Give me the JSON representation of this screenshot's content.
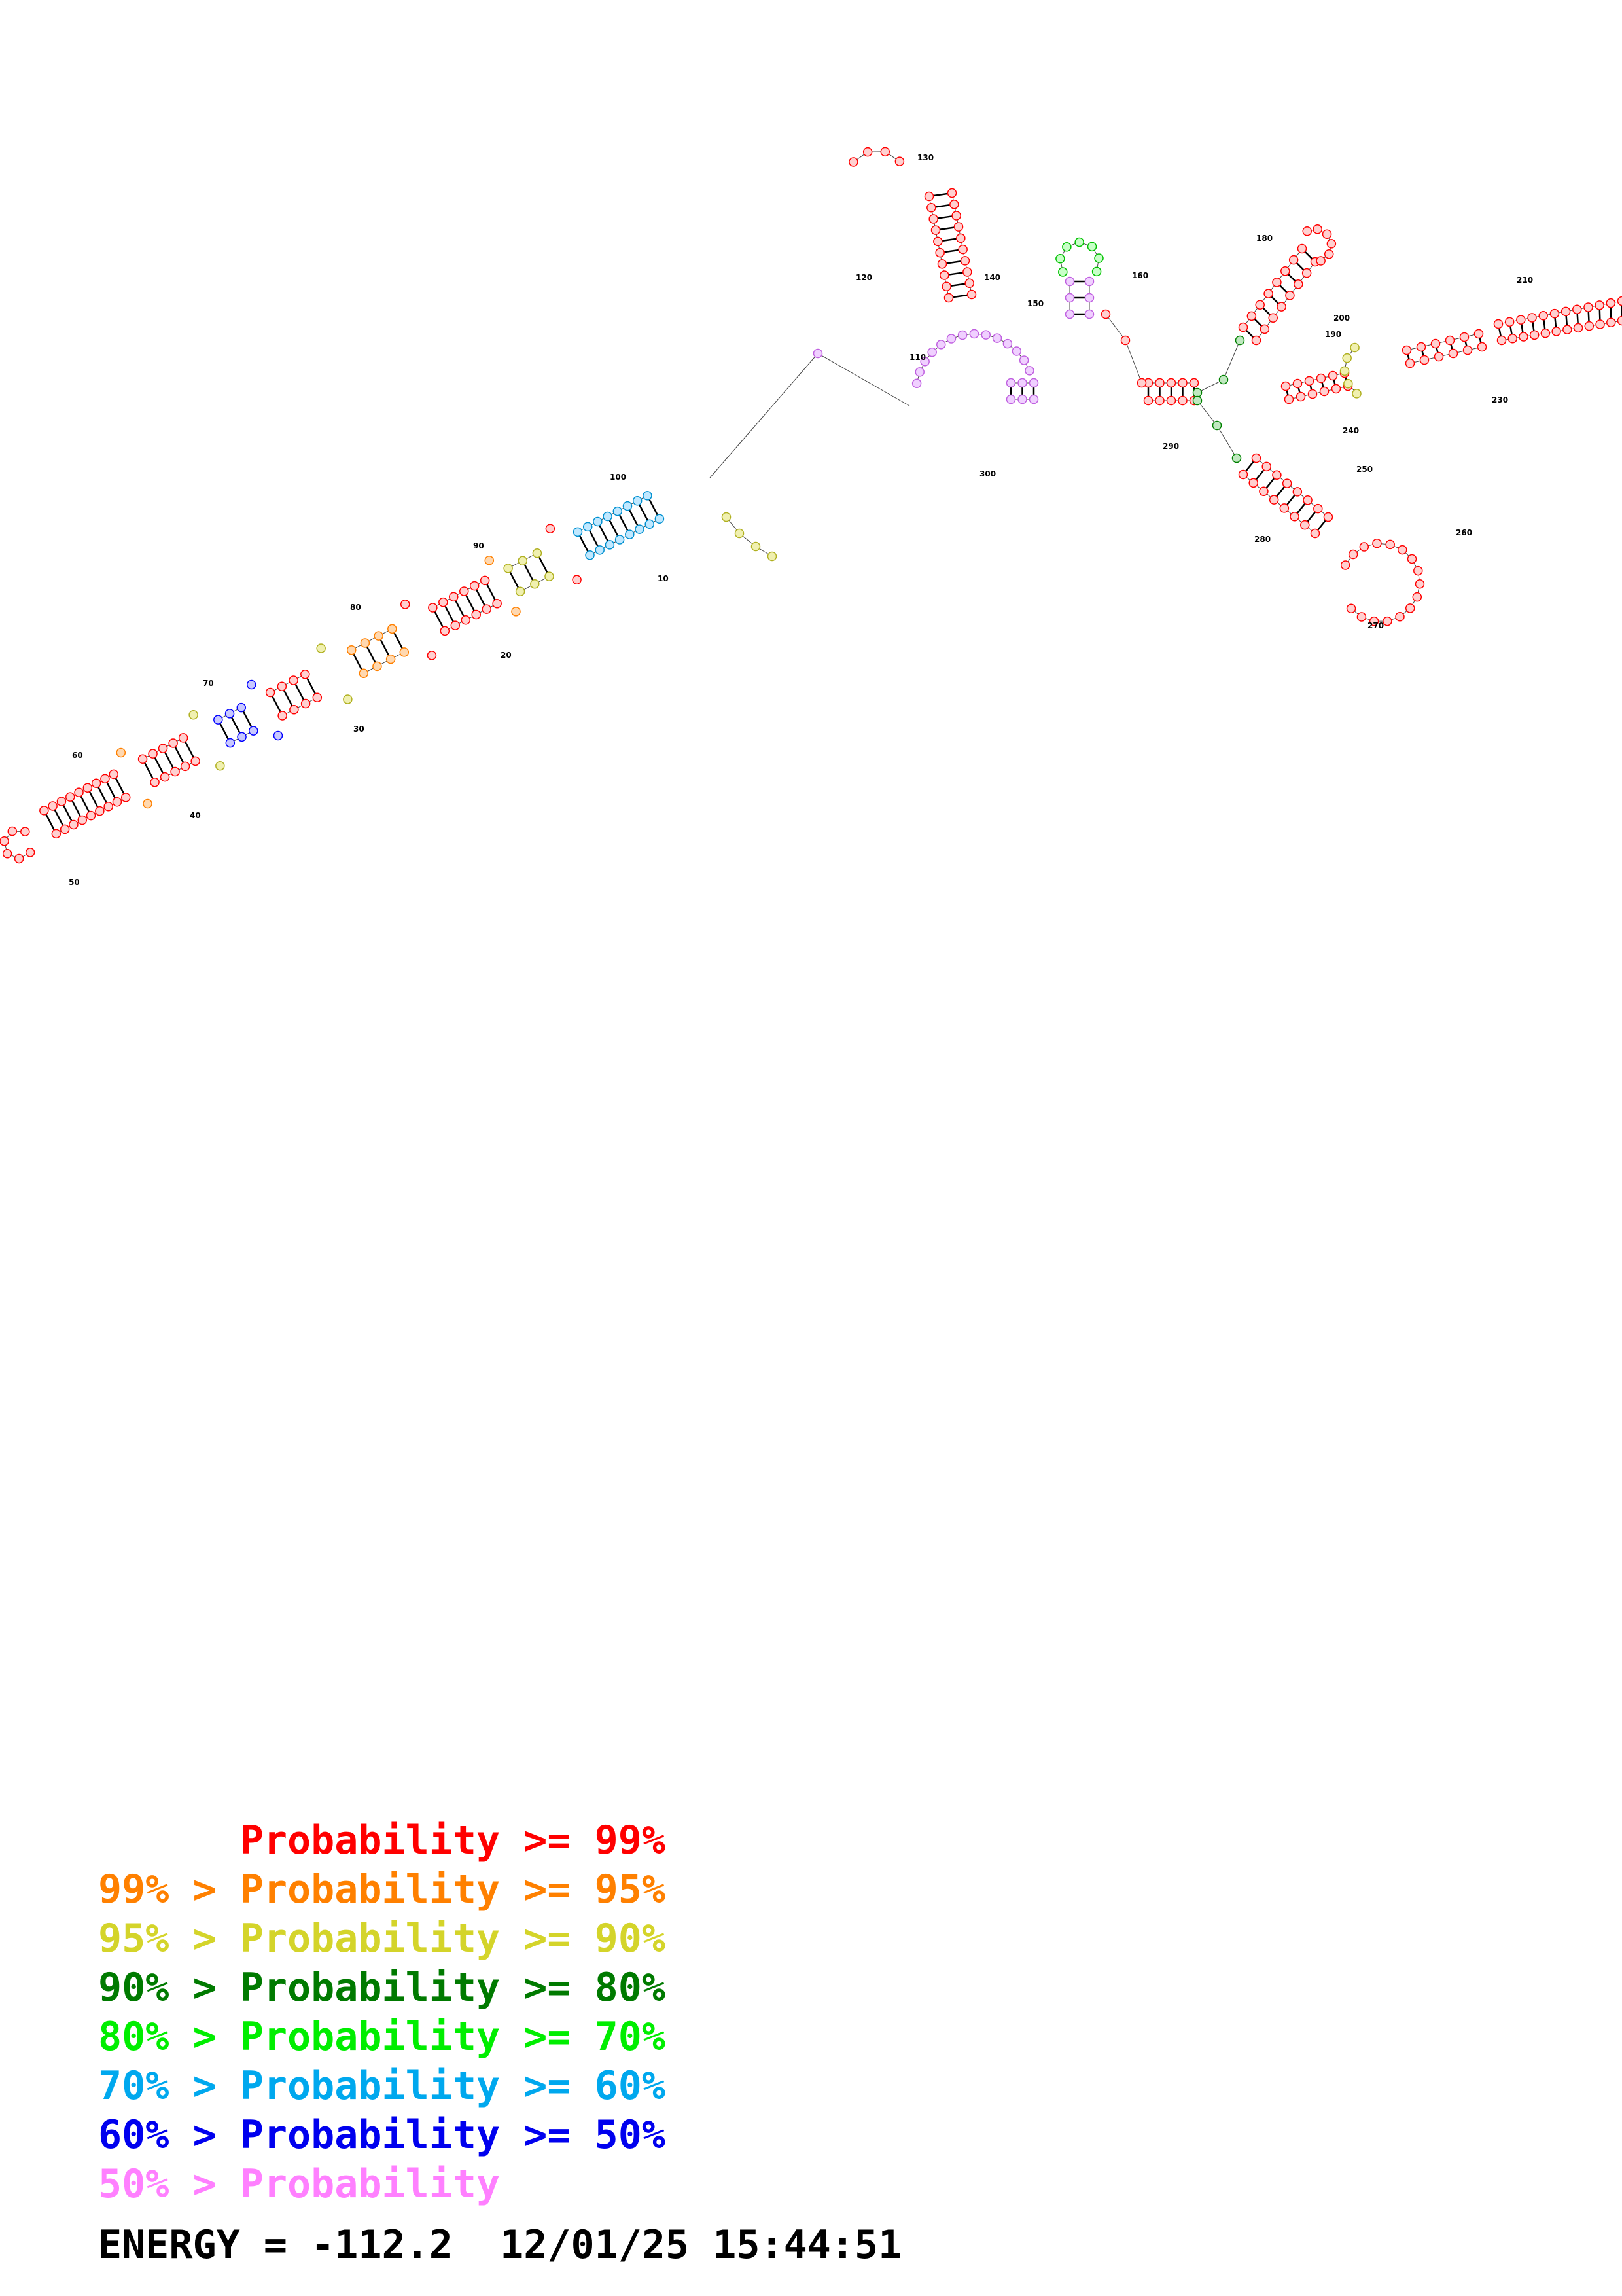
{
  "diagram": {
    "type": "rna-secondary-structure",
    "position_labels": [
      "10",
      "20",
      "30",
      "40",
      "50",
      "60",
      "70",
      "80",
      "90",
      "100",
      "110",
      "120",
      "130",
      "140",
      "150",
      "160",
      "180",
      "190",
      "200",
      "210",
      "230",
      "240",
      "250",
      "260",
      "270",
      "280",
      "290",
      "300"
    ],
    "probability_colors": {
      "p99": "#ff0000",
      "p95": "#ff8000",
      "p90": "#d4d42a",
      "p80": "#008000",
      "p70": "#00ff00",
      "p60": "#00a8ff",
      "p50": "#0000ff",
      "plow": "#ff80ff"
    }
  },
  "legend": [
    {
      "left": "",
      "right": "Probability >= 99%",
      "color": "#ff0000"
    },
    {
      "left": "99% > ",
      "right": "Probability >= 95%",
      "color": "#ff8000"
    },
    {
      "left": "95% > ",
      "right": "Probability >= 90%",
      "color": "#d4d42a"
    },
    {
      "left": "90% > ",
      "right": "Probability >= 80%",
      "color": "#007a00"
    },
    {
      "left": "80% > ",
      "right": "Probability >= 70%",
      "color": "#00ee00"
    },
    {
      "left": "70% > ",
      "right": "Probability >= 60%",
      "color": "#00a8ee"
    },
    {
      "left": "60% > ",
      "right": "Probability >= 50%",
      "color": "#0000ee"
    },
    {
      "left": "50% > ",
      "right": "Probability",
      "color": "#ff80ff"
    }
  ],
  "footer": {
    "energy_label": "ENERGY =",
    "energy_value": "-112.2",
    "timestamp": "12/01/25 15:44:51"
  }
}
